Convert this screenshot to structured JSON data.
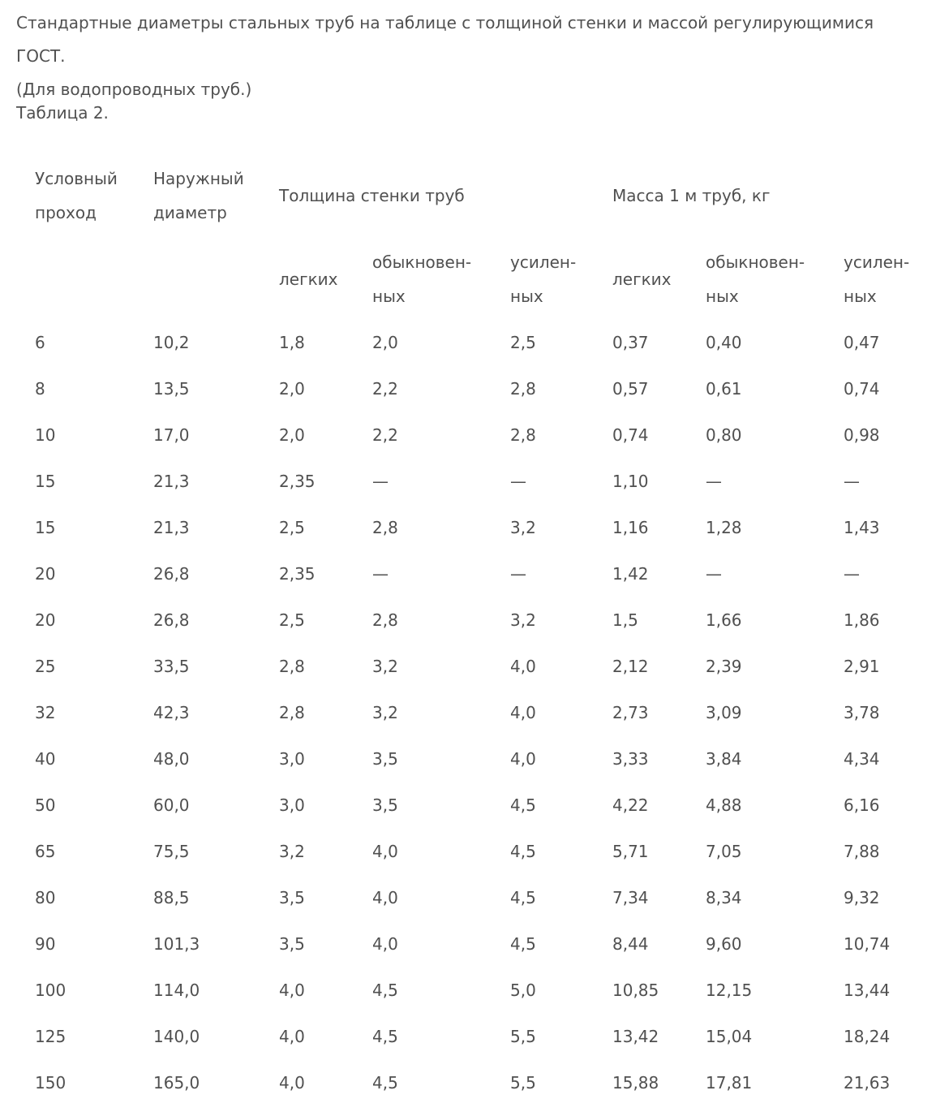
{
  "intro": {
    "line1": "Стандартные диаметры стальных труб на таблице с толщиной стенки и массой регулирующимися ГОСТ.",
    "line2": "(Для водопроводных труб.)"
  },
  "caption": "Таблица 2.",
  "table": {
    "header": {
      "col_nominal_bore": [
        "Условный",
        "проход"
      ],
      "col_outer_diameter": [
        "Наружный",
        "диаметр"
      ],
      "group_wall": "Толщина стенки труб",
      "group_mass": "Масса 1 м труб, кг"
    },
    "subheader": {
      "wall": [
        [
          "легких"
        ],
        [
          "обыкновен-",
          "ных"
        ],
        [
          "усилен-",
          "ных"
        ]
      ],
      "mass": [
        [
          "легких"
        ],
        [
          "обыкновен-",
          "ных"
        ],
        [
          "усилен-",
          "ных"
        ]
      ]
    },
    "rows": [
      [
        "6",
        "10,2",
        "1,8",
        "2,0",
        "2,5",
        "0,37",
        "0,40",
        "0,47"
      ],
      [
        "8",
        "13,5",
        "2,0",
        "2,2",
        "2,8",
        "0,57",
        "0,61",
        "0,74"
      ],
      [
        "10",
        "17,0",
        "2,0",
        "2,2",
        "2,8",
        "0,74",
        "0,80",
        "0,98"
      ],
      [
        "15",
        "21,3",
        "2,35",
        "—",
        "—",
        "1,10",
        "—",
        "—"
      ],
      [
        "15",
        "21,3",
        "2,5",
        "2,8",
        "3,2",
        "1,16",
        "1,28",
        "1,43"
      ],
      [
        "20",
        "26,8",
        "2,35",
        "—",
        "—",
        "1,42",
        "—",
        "—"
      ],
      [
        "20",
        "26,8",
        "2,5",
        "2,8",
        "3,2",
        "1,5",
        "1,66",
        "1,86"
      ],
      [
        "25",
        "33,5",
        "2,8",
        "3,2",
        "4,0",
        "2,12",
        "2,39",
        "2,91"
      ],
      [
        "32",
        "42,3",
        "2,8",
        "3,2",
        "4,0",
        "2,73",
        "3,09",
        "3,78"
      ],
      [
        "40",
        "48,0",
        "3,0",
        "3,5",
        "4,0",
        "3,33",
        "3,84",
        "4,34"
      ],
      [
        "50",
        "60,0",
        "3,0",
        "3,5",
        "4,5",
        "4,22",
        "4,88",
        "6,16"
      ],
      [
        "65",
        "75,5",
        "3,2",
        "4,0",
        "4,5",
        "5,71",
        "7,05",
        "7,88"
      ],
      [
        "80",
        "88,5",
        "3,5",
        "4,0",
        "4,5",
        "7,34",
        "8,34",
        "9,32"
      ],
      [
        "90",
        "101,3",
        "3,5",
        "4,0",
        "4,5",
        "8,44",
        "9,60",
        "10,74"
      ],
      [
        "100",
        "114,0",
        "4,0",
        "4,5",
        "5,0",
        "10,85",
        "12,15",
        "13,44"
      ],
      [
        "125",
        "140,0",
        "4,0",
        "4,5",
        "5,5",
        "13,42",
        "15,04",
        "18,24"
      ],
      [
        "150",
        "165,0",
        "4,0",
        "4,5",
        "5,5",
        "15,88",
        "17,81",
        "21,63"
      ]
    ]
  }
}
